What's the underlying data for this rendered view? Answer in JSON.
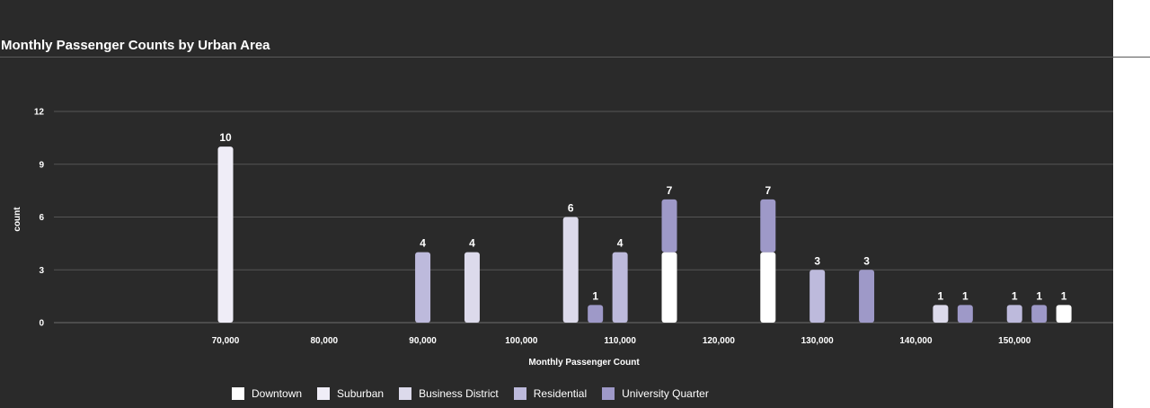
{
  "page_title": "Monthly Passenger Counts by Urban Area",
  "chart_data": {
    "type": "bar",
    "title": "Monthly Passenger Counts by Urban Area",
    "xlabel": "Monthly Passenger Count",
    "ylabel": "count",
    "ylim": [
      0,
      12
    ],
    "yticks": [
      0,
      3,
      6,
      9,
      12
    ],
    "xticks": [
      70000,
      80000,
      90000,
      100000,
      110000,
      120000,
      130000,
      140000,
      150000
    ],
    "xlim": [
      52600,
      160000
    ],
    "grid": true,
    "legend_position": "bottom",
    "bin_width": 2500,
    "series": [
      {
        "name": "Downtown",
        "color": "#ffffff",
        "bars": [
          {
            "x": 115000,
            "y": 4
          },
          {
            "x": 125000,
            "y": 4
          },
          {
            "x": 155000,
            "y": 1
          }
        ]
      },
      {
        "name": "Suburban",
        "color": "#efedf7",
        "bars": [
          {
            "x": 70000,
            "y": 10
          }
        ]
      },
      {
        "name": "Business District",
        "color": "#dcdaeb",
        "bars": [
          {
            "x": 95000,
            "y": 4
          },
          {
            "x": 105000,
            "y": 6
          },
          {
            "x": 142500,
            "y": 1
          }
        ]
      },
      {
        "name": "Residential",
        "color": "#bdbadc",
        "bars": [
          {
            "x": 90000,
            "y": 4
          },
          {
            "x": 110000,
            "y": 4
          },
          {
            "x": 130000,
            "y": 3
          },
          {
            "x": 150000,
            "y": 1
          }
        ]
      },
      {
        "name": "University Quarter",
        "color": "#9e99c8",
        "bars": [
          {
            "x": 107500,
            "y": 1
          },
          {
            "x": 115000,
            "y": 3
          },
          {
            "x": 125000,
            "y": 3
          },
          {
            "x": 135000,
            "y": 3
          },
          {
            "x": 145000,
            "y": 1
          },
          {
            "x": 152500,
            "y": 1
          }
        ]
      }
    ]
  }
}
